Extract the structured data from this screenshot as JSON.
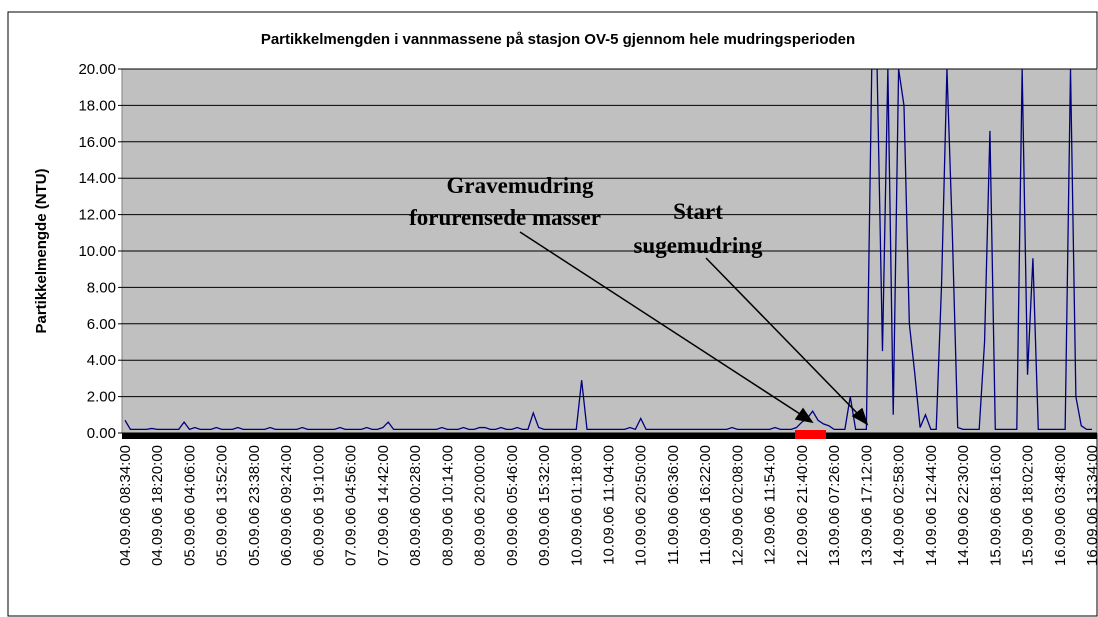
{
  "chart_data": {
    "type": "line",
    "title": "Partikkelmengden i vannmassene på stasjon OV-5 gjennom hele mudringsperioden",
    "y_label": "Partikkelmengde (NTU)",
    "annotations": [
      "Gravemudring",
      "forurensede masser",
      "Start",
      "sugemudring"
    ],
    "ylim": [
      0,
      20
    ],
    "yticks": [
      {
        "value": 0,
        "label": "0.00"
      },
      {
        "value": 2,
        "label": "2.00"
      },
      {
        "value": 4,
        "label": "4.00"
      },
      {
        "value": 6,
        "label": "6.00"
      },
      {
        "value": 8,
        "label": "8.00"
      },
      {
        "value": 10,
        "label": "10.00"
      },
      {
        "value": 12,
        "label": "12.00"
      },
      {
        "value": 14,
        "label": "14.00"
      },
      {
        "value": 16,
        "label": "16.00"
      },
      {
        "value": 18,
        "label": "18.00"
      },
      {
        "value": 20,
        "label": "20.00"
      }
    ],
    "grid": true,
    "categories": [
      "04.09.06 08:34:00",
      null,
      null,
      null,
      null,
      null,
      "04.09.06 18:20:00",
      null,
      null,
      null,
      null,
      null,
      "05.09.06 04:06:00",
      null,
      null,
      null,
      null,
      null,
      "05.09.06 13:52:00",
      null,
      null,
      null,
      null,
      null,
      "05.09.06 23:38:00",
      null,
      null,
      null,
      null,
      null,
      "06.09.06 09:24:00",
      null,
      null,
      null,
      null,
      null,
      "06.09.06 19:10:00",
      null,
      null,
      null,
      null,
      null,
      "07.09.06 04:56:00",
      null,
      null,
      null,
      null,
      null,
      "07.09.06 14:42:00",
      null,
      null,
      null,
      null,
      null,
      "08.09.06 00:28:00",
      null,
      null,
      null,
      null,
      null,
      "08.09.06 10:14:00",
      null,
      null,
      null,
      null,
      null,
      "08.09.06 20:00:00",
      null,
      null,
      null,
      null,
      null,
      "09.09.06 05:46:00",
      null,
      null,
      null,
      null,
      null,
      "09.09.06 15:32:00",
      null,
      null,
      null,
      null,
      null,
      "10.09.06 01:18:00",
      null,
      null,
      null,
      null,
      null,
      "10.09.06 11:04:00",
      null,
      null,
      null,
      null,
      null,
      "10.09.06 20:50:00",
      null,
      null,
      null,
      null,
      null,
      "11.09.06 06:36:00",
      null,
      null,
      null,
      null,
      null,
      "11.09.06 16:22:00",
      null,
      null,
      null,
      null,
      null,
      "12.09.06 02:08:00",
      null,
      null,
      null,
      null,
      null,
      "12.09.06 11:54:00",
      null,
      null,
      null,
      null,
      null,
      "12.09.06 21:40:00",
      null,
      null,
      null,
      null,
      null,
      "13.09.06 07:26:00",
      null,
      null,
      null,
      null,
      null,
      "13.09.06 17:12:00",
      null,
      null,
      null,
      null,
      null,
      "14.09.06 02:58:00",
      null,
      null,
      null,
      null,
      null,
      "14.09.06 12:44:00",
      null,
      null,
      null,
      null,
      null,
      "14.09.06 22:30:00",
      null,
      null,
      null,
      null,
      null,
      "15.09.06 08:16:00",
      null,
      null,
      null,
      null,
      null,
      "15.09.06 18:02:00",
      null,
      null,
      null,
      null,
      null,
      "16.09.06 03:48:00",
      null,
      null,
      null,
      null,
      null,
      "16.09.06 13:34:00"
    ],
    "series": [
      {
        "color": "#000080",
        "values": [
          0.7,
          0.2,
          0.2,
          0.2,
          0.2,
          0.25,
          0.2,
          0.2,
          0.2,
          0.2,
          0.2,
          0.6,
          0.2,
          0.3,
          0.2,
          0.2,
          0.2,
          0.3,
          0.2,
          0.2,
          0.2,
          0.3,
          0.2,
          0.2,
          0.2,
          0.2,
          0.2,
          0.3,
          0.2,
          0.2,
          0.2,
          0.2,
          0.2,
          0.3,
          0.2,
          0.2,
          0.2,
          0.2,
          0.2,
          0.2,
          0.3,
          0.2,
          0.2,
          0.2,
          0.2,
          0.3,
          0.2,
          0.2,
          0.3,
          0.6,
          0.2,
          0.2,
          0.2,
          0.2,
          0.2,
          0.2,
          0.2,
          0.2,
          0.2,
          0.3,
          0.2,
          0.2,
          0.2,
          0.3,
          0.2,
          0.2,
          0.3,
          0.3,
          0.2,
          0.2,
          0.3,
          0.2,
          0.2,
          0.3,
          0.2,
          0.2,
          1.1,
          0.3,
          0.2,
          0.2,
          0.2,
          0.2,
          0.2,
          0.2,
          0.2,
          2.9,
          0.2,
          0.2,
          0.2,
          0.2,
          0.2,
          0.2,
          0.2,
          0.2,
          0.3,
          0.2,
          0.8,
          0.2,
          0.2,
          0.2,
          0.2,
          0.2,
          0.2,
          0.2,
          0.2,
          0.2,
          0.2,
          0.2,
          0.2,
          0.2,
          0.2,
          0.2,
          0.2,
          0.3,
          0.2,
          0.2,
          0.2,
          0.2,
          0.2,
          0.2,
          0.2,
          0.3,
          0.2,
          0.2,
          0.2,
          0.3,
          0.6,
          0.8,
          1.2,
          0.7,
          0.5,
          0.4,
          0.2,
          0.2,
          0.2,
          2.0,
          0.2,
          0.2,
          0.2,
          20,
          20,
          4.5,
          20,
          1.0,
          20,
          18,
          6,
          3.3,
          0.3,
          1.0,
          0.2,
          0.2,
          8.2,
          20,
          11,
          0.3,
          0.2,
          0.2,
          0.2,
          0.2,
          5.0,
          16.6,
          0.2,
          0.2,
          0.2,
          0.2,
          0.2,
          20,
          3.2,
          9.6,
          0.2,
          0.2,
          0.2,
          0.2,
          0.2,
          0.2,
          20,
          2.0,
          0.4,
          0.2,
          0.2
        ]
      }
    ]
  }
}
